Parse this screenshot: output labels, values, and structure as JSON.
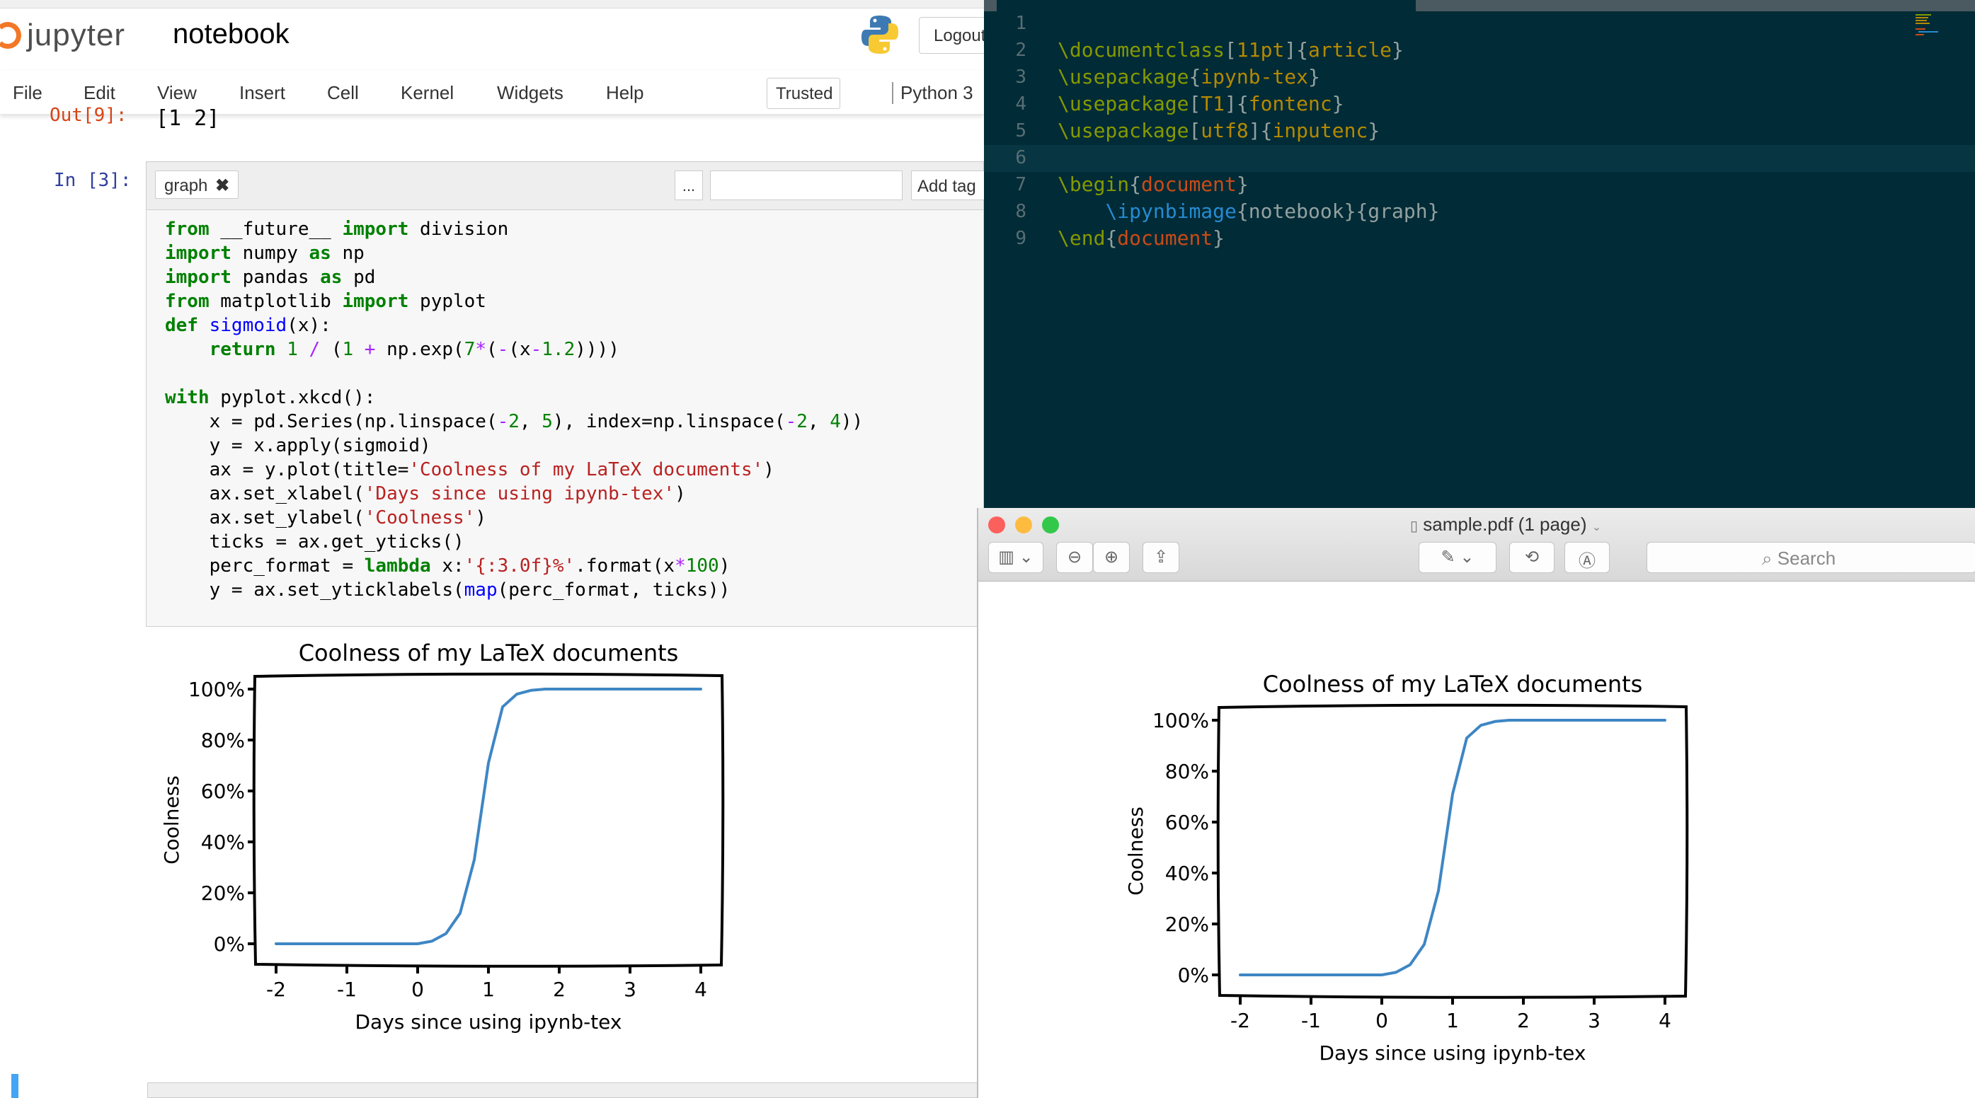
{
  "jupyter": {
    "logo_text": "jupyter",
    "notebook_name": "notebook",
    "logout_label": "Logout",
    "menu": [
      "File",
      "Edit",
      "View",
      "Insert",
      "Cell",
      "Kernel",
      "Widgets",
      "Help"
    ],
    "trusted_label": "Trusted",
    "kernel_name": "Python 3",
    "prev_output_prompt": "Out[9]:",
    "prev_output_value": "[1  2]",
    "cell": {
      "prompt": "In [3]:",
      "tag": "graph",
      "tag_menu_label": "...",
      "add_tag_label": "Add tag",
      "tag_input_value": ""
    }
  },
  "editor": {
    "line_numbers": [
      "1",
      "2",
      "3",
      "4",
      "5",
      "6",
      "7",
      "8",
      "9"
    ],
    "current_line": 6
  },
  "preview": {
    "window_title": "sample.pdf (1 page)",
    "search_placeholder": "Search",
    "traffic_colors": [
      "#fc605c",
      "#fdbc40",
      "#34c84a"
    ]
  },
  "chart_data": [
    {
      "type": "line",
      "title": "Coolness of my LaTeX documents",
      "xlabel": "Days since using ipynb-tex",
      "ylabel": "Coolness",
      "x": [
        -2.0,
        -1.5,
        -1.0,
        -0.5,
        0.0,
        0.2,
        0.4,
        0.6,
        0.8,
        1.0,
        1.2,
        1.4,
        1.6,
        1.8,
        2.0,
        2.5,
        3.0,
        3.5,
        4.0
      ],
      "series": [
        {
          "values": [
            0.0,
            0.0,
            0.0,
            0.0,
            0.0,
            0.01,
            0.04,
            0.12,
            0.33,
            0.71,
            0.93,
            0.98,
            0.995,
            1.0,
            1.0,
            1.0,
            1.0,
            1.0,
            1.0
          ],
          "color": "#3e86c4"
        }
      ],
      "xticks": [
        "-2",
        "-1",
        "0",
        "1",
        "2",
        "3",
        "4"
      ],
      "yticks": [
        "0%",
        "20%",
        "40%",
        "60%",
        "80%",
        "100%"
      ],
      "xlim": [
        -2,
        4
      ],
      "ylim": [
        0,
        1
      ],
      "grid": false,
      "style": "xkcd"
    },
    {
      "type": "line",
      "title": "Coolness of my LaTeX documents",
      "xlabel": "Days since using ipynb-tex",
      "ylabel": "Coolness",
      "x": [
        -2.0,
        -1.5,
        -1.0,
        -0.5,
        0.0,
        0.2,
        0.4,
        0.6,
        0.8,
        1.0,
        1.2,
        1.4,
        1.6,
        1.8,
        2.0,
        2.5,
        3.0,
        3.5,
        4.0
      ],
      "series": [
        {
          "values": [
            0.0,
            0.0,
            0.0,
            0.0,
            0.0,
            0.01,
            0.04,
            0.12,
            0.33,
            0.71,
            0.93,
            0.98,
            0.995,
            1.0,
            1.0,
            1.0,
            1.0,
            1.0,
            1.0
          ],
          "color": "#3e86c4"
        }
      ],
      "xticks": [
        "-2",
        "-1",
        "0",
        "1",
        "2",
        "3",
        "4"
      ],
      "yticks": [
        "0%",
        "20%",
        "40%",
        "60%",
        "80%",
        "100%"
      ],
      "xlim": [
        -2,
        4
      ],
      "ylim": [
        0,
        1
      ],
      "grid": false,
      "style": "xkcd"
    }
  ]
}
